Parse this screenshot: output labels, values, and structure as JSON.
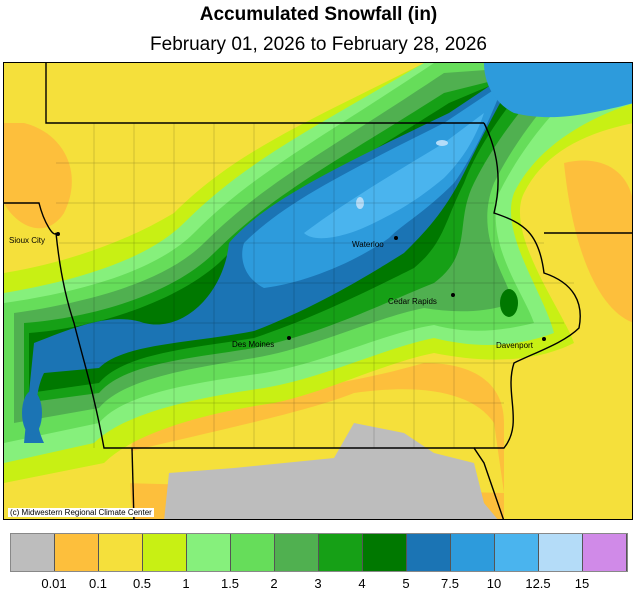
{
  "title": "Accumulated Snowfall (in)",
  "subtitle": "February 01, 2026 to February 28, 2026",
  "credit": "(c) Midwestern Regional Climate Center",
  "cities": [
    {
      "name": "Sioux City"
    },
    {
      "name": "Waterloo"
    },
    {
      "name": "Cedar Rapids"
    },
    {
      "name": "Des Moines"
    },
    {
      "name": "Davenport"
    }
  ],
  "legend": {
    "colors": [
      "#bdbdbd",
      "#fdbf3c",
      "#f5e03b",
      "#c8f014",
      "#86f07c",
      "#66dd5a",
      "#50b050",
      "#16a016",
      "#007800",
      "#1b74b4",
      "#2d9bdc",
      "#4ab4ee",
      "#b4dcf8",
      "#d08ae8"
    ],
    "labels": [
      "0.01",
      "0.1",
      "0.5",
      "1",
      "1.5",
      "2",
      "3",
      "4",
      "5",
      "7.5",
      "10",
      "12.5",
      "15"
    ]
  }
}
